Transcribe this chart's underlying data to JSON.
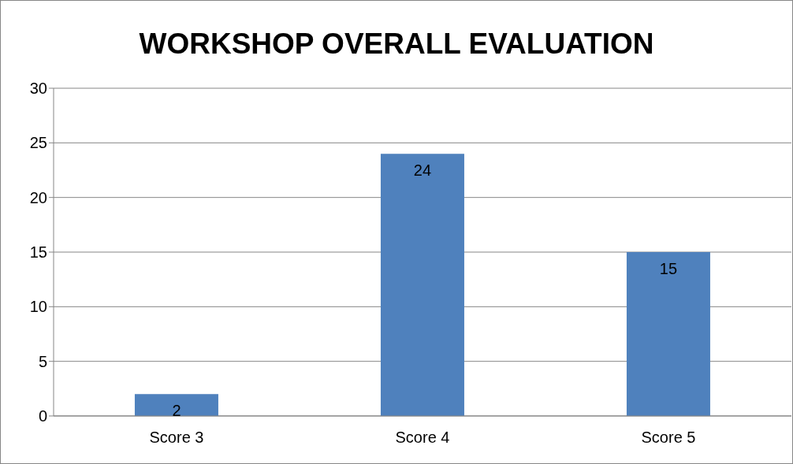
{
  "chart_data": {
    "type": "bar",
    "title": "WORKSHOP OVERALL EVALUATION",
    "categories": [
      "Score 3",
      "Score 4",
      "Score 5"
    ],
    "values": [
      2,
      24,
      15
    ],
    "color": "#4f81bd",
    "ylim": [
      0,
      30
    ],
    "yticks": [
      0,
      5,
      10,
      15,
      20,
      25,
      30
    ],
    "grid": "y",
    "data_labels": true
  }
}
